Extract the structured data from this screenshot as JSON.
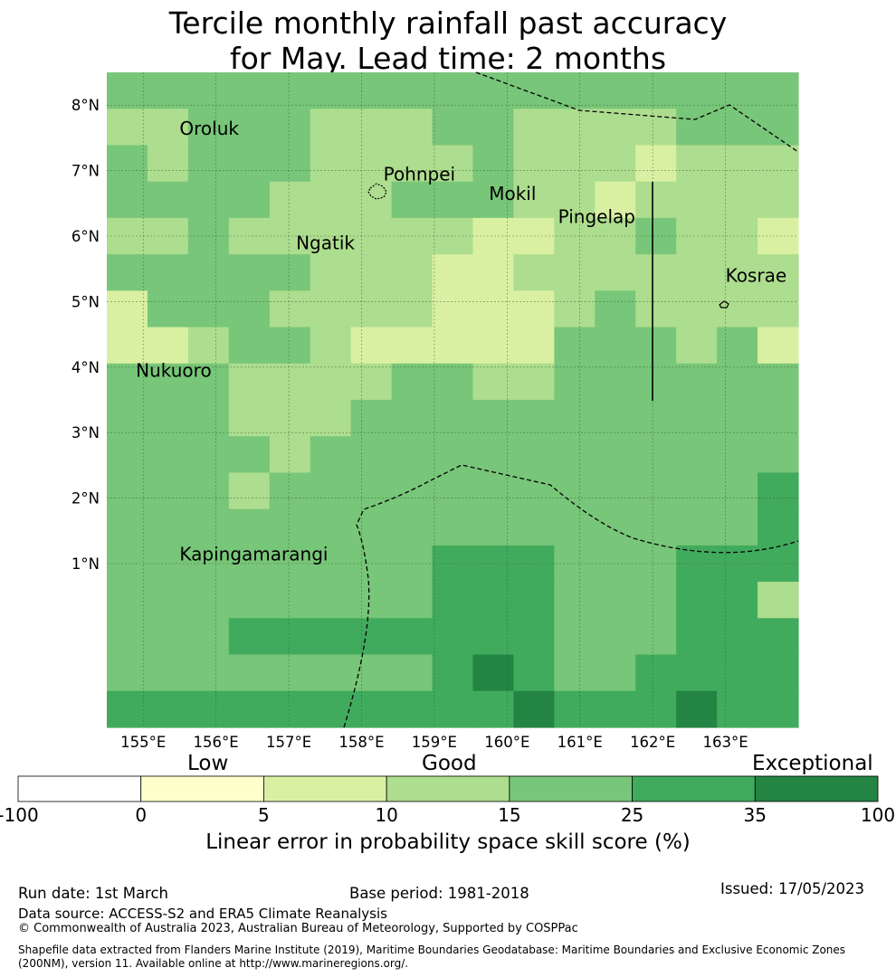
{
  "title_line1": "Tercile monthly rainfall past accuracy",
  "title_line2": "for May. Lead time: 2 months",
  "map": {
    "lon_range": [
      154.5,
      164.0
    ],
    "lat_range": [
      -1.5,
      8.5
    ],
    "lon_ticks": [
      155,
      156,
      157,
      158,
      159,
      160,
      161,
      162,
      163
    ],
    "lon_labels": [
      "155°E",
      "156°E",
      "157°E",
      "158°E",
      "159°E",
      "160°E",
      "161°E",
      "162°E",
      "163°E"
    ],
    "lat_ticks": [
      1,
      2,
      3,
      4,
      5,
      6,
      7,
      8
    ],
    "lat_labels": [
      "1°N",
      "2°N",
      "3°N",
      "4°N",
      "5°N",
      "6°N",
      "7°N",
      "8°N"
    ],
    "grid_rows": [
      "44444444444444444",
      "33444333443333444",
      "43444333343332333",
      "44443334443323333",
      "33433333322334332",
      "44444333223333333",
      "24443333222343333",
      "22344322222444342",
      "44433334433444444",
      "44433344444444444",
      "44443444444444444",
      "44434444444444445",
      "44444444444444445",
      "44444444555444555",
      "44444444555444553",
      "44455555555444555",
      "44444444565445555",
      "55555555556555655"
    ],
    "places": [
      {
        "name": "Oroluk",
        "lon": 155.5,
        "lat": 7.55
      },
      {
        "name": "Pohnpei",
        "lon": 158.3,
        "lat": 6.85
      },
      {
        "name": "Mokil",
        "lon": 159.75,
        "lat": 6.55
      },
      {
        "name": "Pingelap",
        "lon": 160.7,
        "lat": 6.2
      },
      {
        "name": "Ngatik",
        "lon": 157.1,
        "lat": 5.8
      },
      {
        "name": "Kosrae",
        "lon": 163.0,
        "lat": 5.3
      },
      {
        "name": "Nukuoro",
        "lon": 154.9,
        "lat": 3.85
      },
      {
        "name": "Kapingamarangi",
        "lon": 155.5,
        "lat": 1.05
      }
    ]
  },
  "colorbar": {
    "bounds": [
      -100,
      0,
      5,
      10,
      15,
      25,
      35,
      100
    ],
    "colors": [
      "#ffffff",
      "#ffffcc",
      "#d9f0a3",
      "#addd8e",
      "#78c679",
      "#41ab5d",
      "#238443"
    ],
    "tick_labels": [
      "-100",
      "0",
      "5",
      "10",
      "15",
      "25",
      "35",
      "100"
    ],
    "category_low": "Low",
    "category_good": "Good",
    "category_exceptional": "Exceptional",
    "label": "Linear error in probability space skill score (%)"
  },
  "footer": {
    "run_date": "Run date: 1st March",
    "base_period": "Base period: 1981-2018",
    "issued": "Issued: 17/05/2023",
    "data_source": "Data source: ACCESS-S2 and ERA5 Climate Reanalysis",
    "copyright": "© Commonwealth of Australia 2023, Australian Bureau of Meteorology, Supported by COSPPac",
    "shapefile": "Shapefile data extracted from Flanders Marine Institute (2019), Maritime Boundaries Geodatabase: Maritime Boundaries and Exclusive Economic Zones (200NM), version 11. Available online at http://www.marineregions.org/."
  }
}
